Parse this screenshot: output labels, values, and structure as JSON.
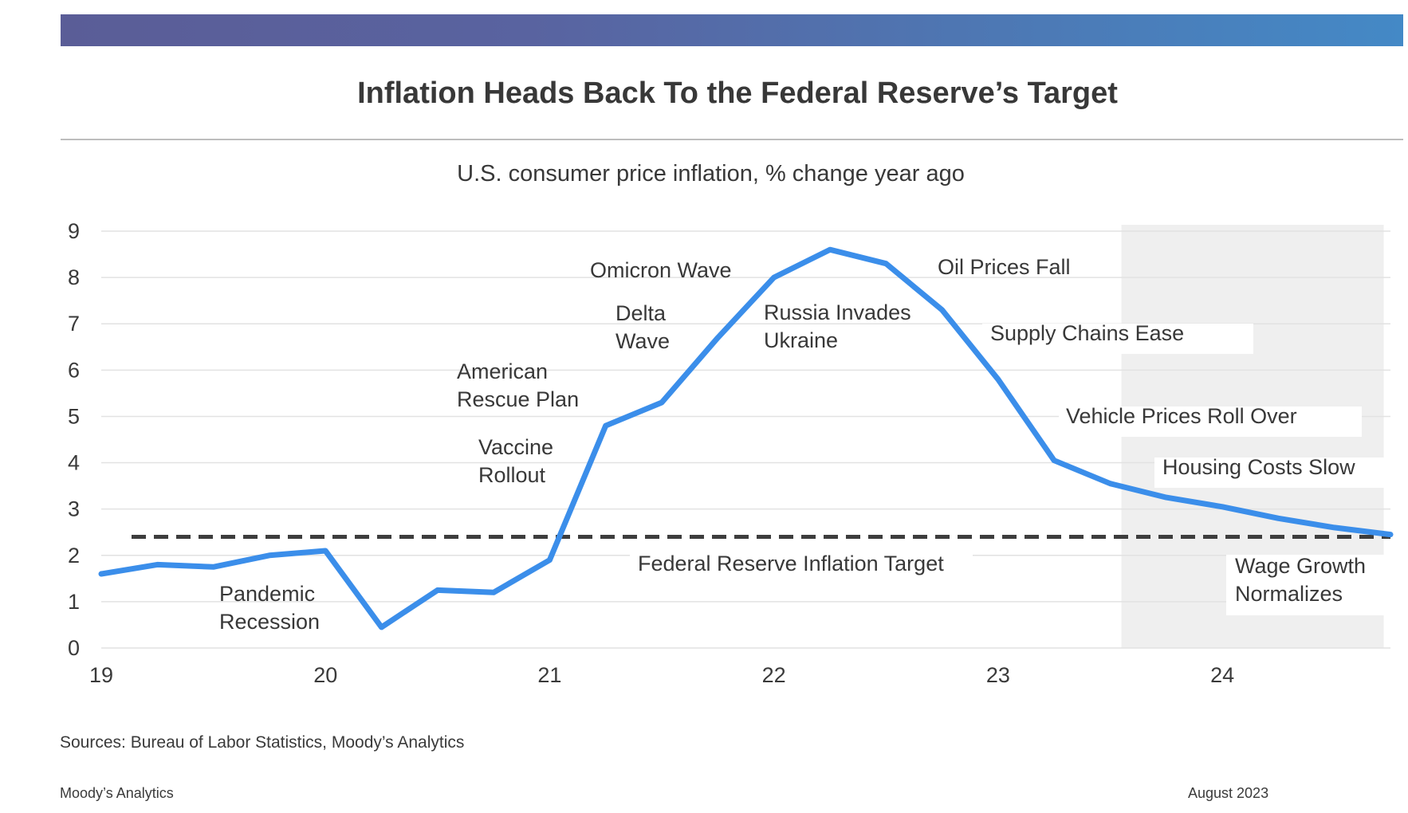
{
  "title": "Inflation Heads Back To the Federal Reserve’s Target",
  "footer": {
    "source": "Sources: Bureau of Labor Statistics, Moody’s Analytics",
    "brand": "Moody’s Analytics",
    "date": "August 2023"
  },
  "chart_data": {
    "type": "line",
    "title": "U.S. consumer price inflation, % change year ago",
    "xlabel": "",
    "ylabel": "",
    "x_ticks": [
      "19",
      "20",
      "21",
      "22",
      "23",
      "24"
    ],
    "y_ticks": [
      0,
      1,
      2,
      3,
      4,
      5,
      6,
      7,
      8,
      9
    ],
    "xlim": [
      2019.0,
      2024.75
    ],
    "ylim": [
      0,
      9
    ],
    "grid": true,
    "forecast_shading": {
      "from": 2023.55,
      "to": 2024.72
    },
    "colors": {
      "series": "#3b8eea",
      "target": "#3d3d3d",
      "shade": "#efefef",
      "grid": "#e2e2e2"
    },
    "series": [
      {
        "x": [
          2019.0,
          2019.25,
          2019.5,
          2019.75,
          2020.0,
          2020.25,
          2020.5,
          2020.75,
          2021.0,
          2021.25,
          2021.5,
          2021.75,
          2022.0,
          2022.25,
          2022.5,
          2022.75,
          2023.0,
          2023.25,
          2023.5,
          2023.75,
          2024.0,
          2024.25,
          2024.5,
          2024.75
        ],
        "y": [
          1.6,
          1.8,
          1.75,
          2.0,
          2.1,
          0.45,
          1.25,
          1.2,
          1.9,
          4.8,
          5.3,
          6.7,
          8.0,
          8.6,
          8.3,
          7.3,
          5.8,
          4.05,
          3.55,
          3.25,
          3.05,
          2.8,
          2.6,
          2.45
        ]
      }
    ],
    "reference_line": {
      "y": 2.4,
      "label": "Federal Reserve Inflation Target"
    },
    "annotations": [
      {
        "lines": [
          "Pandemic",
          "Recession"
        ]
      },
      {
        "lines": [
          "Vaccine",
          "Rollout"
        ]
      },
      {
        "lines": [
          "American",
          "Rescue Plan"
        ]
      },
      {
        "lines": [
          "Delta",
          "Wave"
        ]
      },
      {
        "lines": [
          "Omicron Wave"
        ]
      },
      {
        "lines": [
          "Russia Invades",
          "Ukraine"
        ]
      },
      {
        "lines": [
          "Oil Prices Fall"
        ]
      },
      {
        "lines": [
          "Supply Chains Ease"
        ]
      },
      {
        "lines": [
          "Vehicle Prices Roll Over"
        ]
      },
      {
        "lines": [
          "Housing Costs Slow"
        ]
      },
      {
        "lines": [
          "Wage Growth",
          "Normalizes"
        ]
      }
    ]
  }
}
